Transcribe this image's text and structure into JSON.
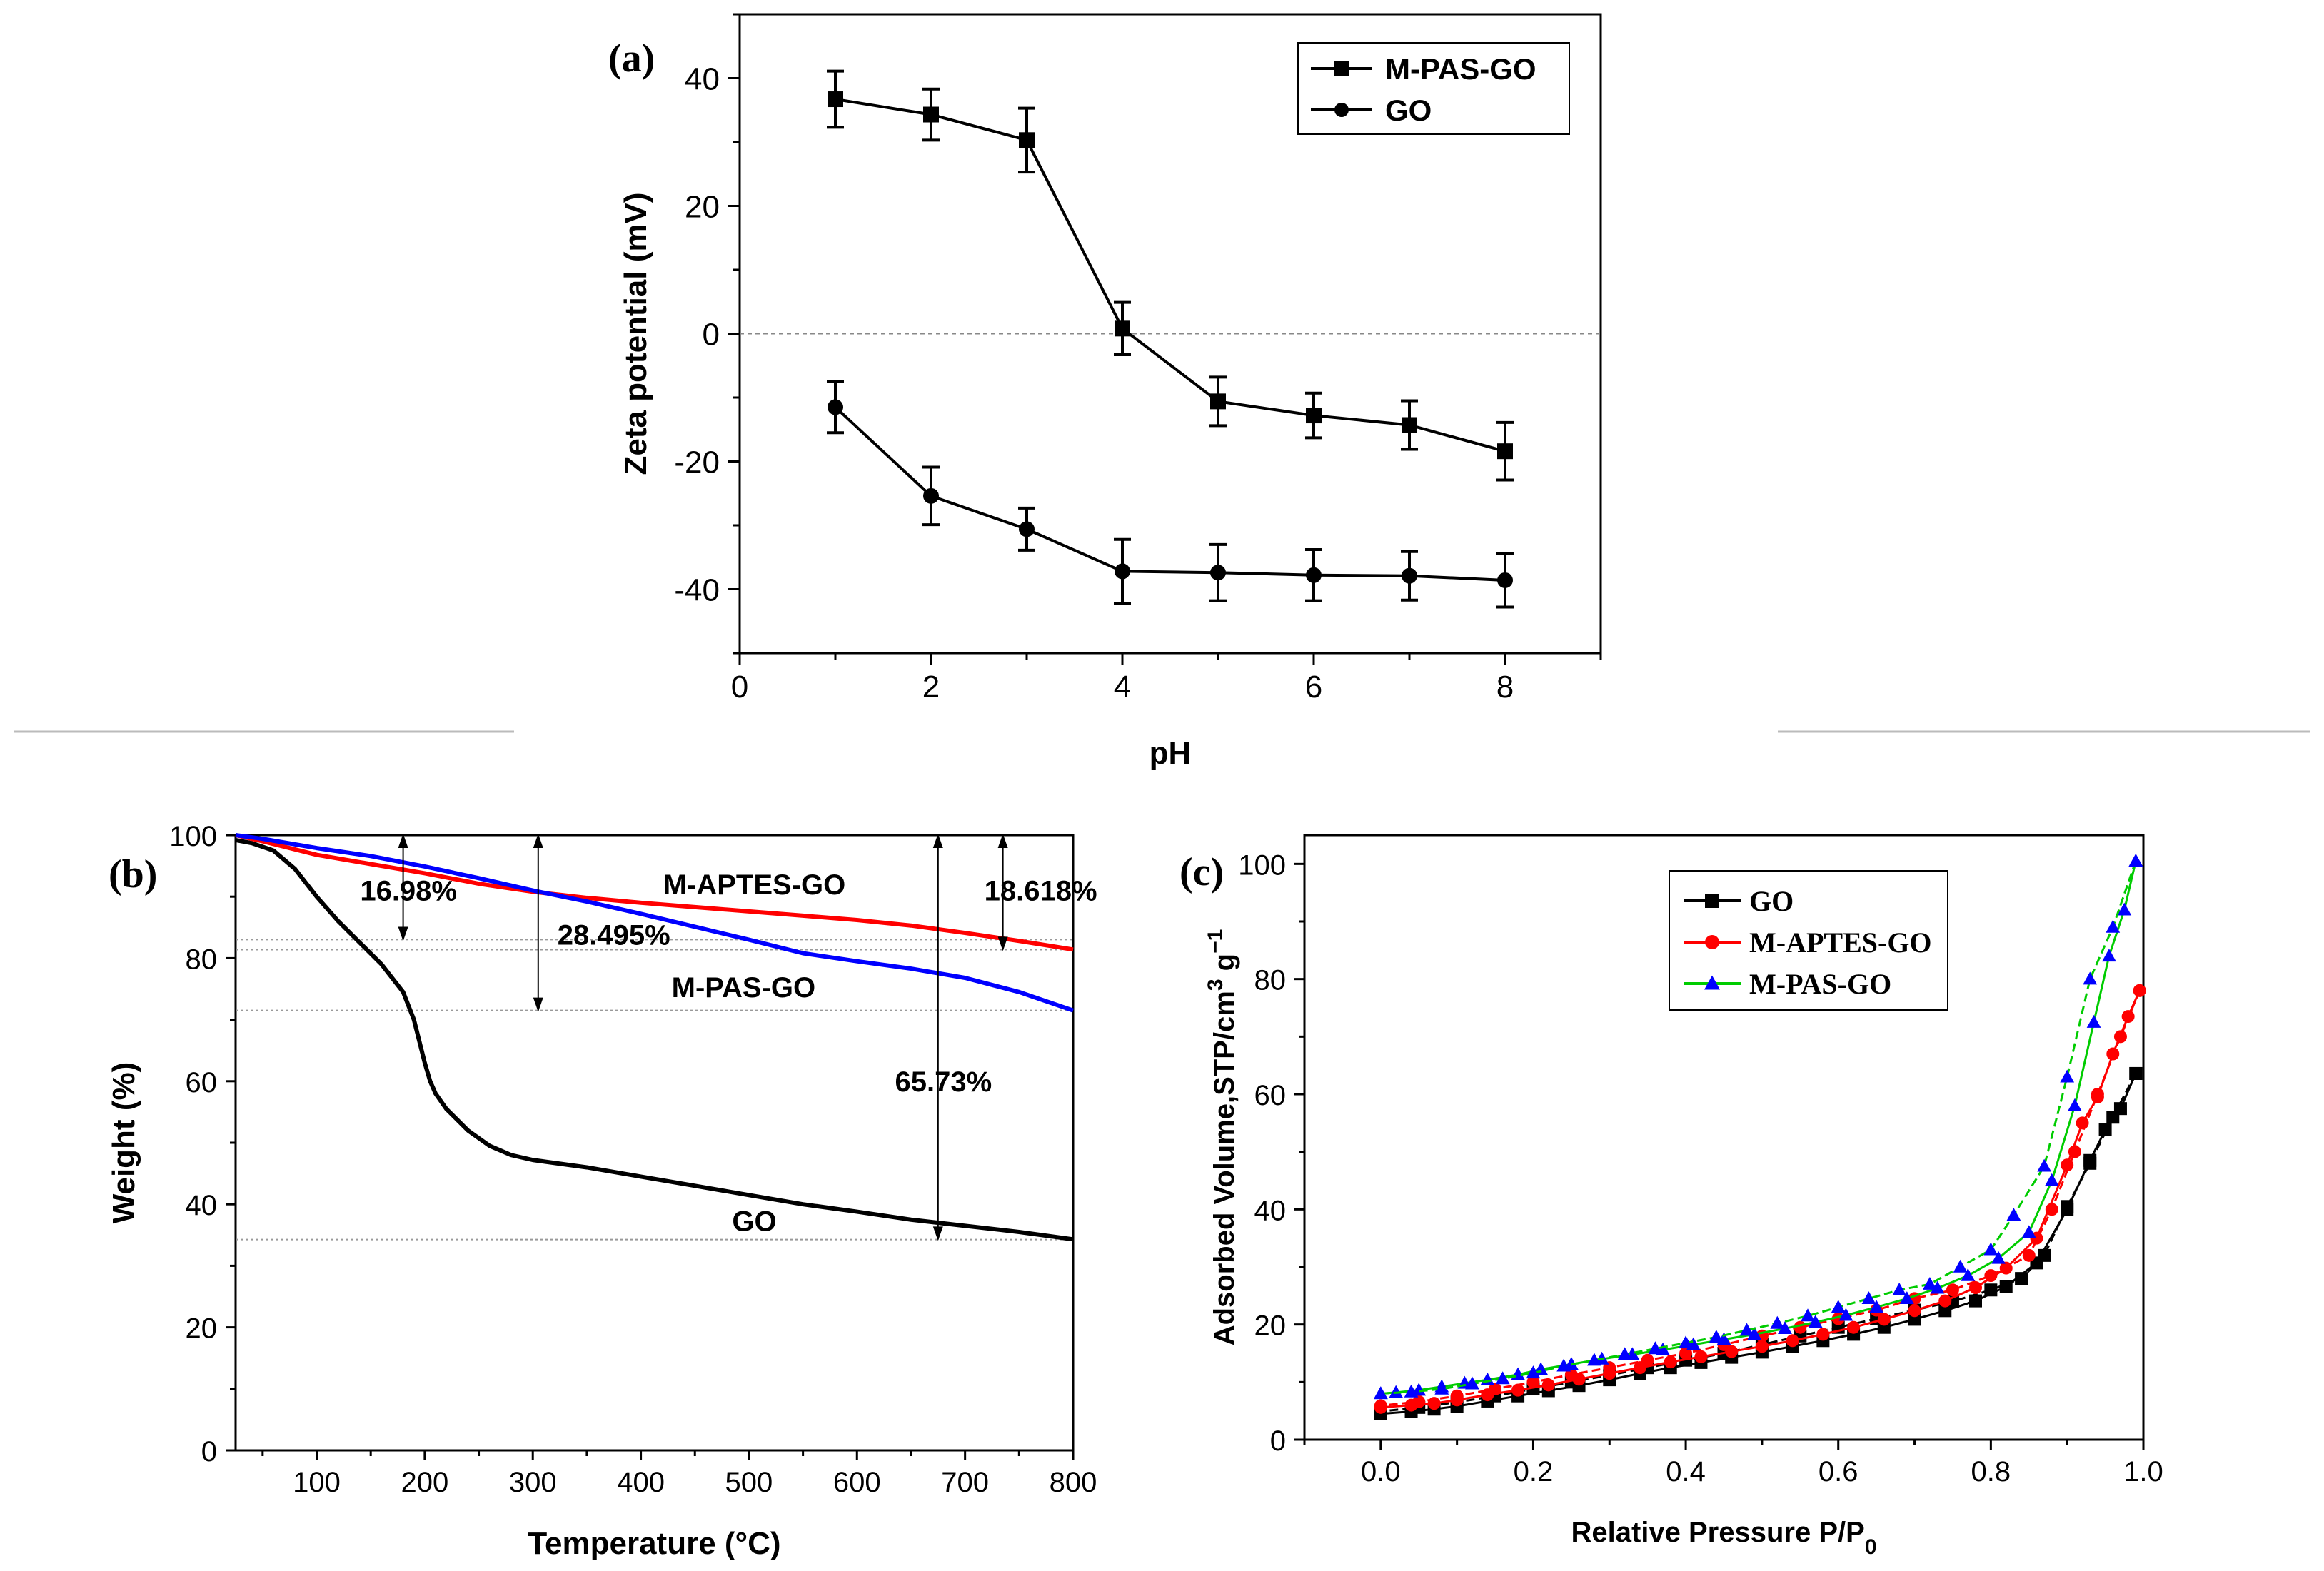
{
  "chart_data": [
    {
      "panel": "(a)",
      "type": "line",
      "title": "",
      "xlabel": "pH",
      "ylabel": "Zeta potential (mV)",
      "xlim": [
        0,
        9
      ],
      "ylim": [
        -50,
        50
      ],
      "xticks": [
        0,
        2,
        4,
        6,
        8
      ],
      "yticks": [
        -40,
        -20,
        0,
        20,
        40
      ],
      "reference_line": {
        "y": 0,
        "style": "dashed"
      },
      "legend": {
        "position": "top-right"
      },
      "series": [
        {
          "name": "M-PAS-GO",
          "marker": "square",
          "color": "#000000",
          "x": [
            1,
            2,
            3,
            4,
            5,
            6,
            7,
            8
          ],
          "y": [
            36.7,
            34.3,
            30.3,
            0.8,
            -10.6,
            -12.8,
            -14.3,
            -18.4
          ],
          "err": [
            4.4,
            4.0,
            5.0,
            4.1,
            3.8,
            3.5,
            3.8,
            4.5
          ]
        },
        {
          "name": "GO",
          "marker": "circle",
          "color": "#000000",
          "x": [
            1,
            2,
            3,
            4,
            5,
            6,
            7,
            8
          ],
          "y": [
            -11.5,
            -25.4,
            -30.6,
            -37.2,
            -37.4,
            -37.8,
            -37.9,
            -38.6
          ],
          "err": [
            4.0,
            4.5,
            3.3,
            5.0,
            4.4,
            4.0,
            3.8,
            4.2
          ]
        }
      ]
    },
    {
      "panel": "(b)",
      "type": "line",
      "title": "",
      "xlabel": "Temperature (°C)",
      "ylabel": "Weight (%)",
      "xlim": [
        25,
        800
      ],
      "ylim": [
        0,
        100
      ],
      "xticks": [
        100,
        200,
        300,
        400,
        500,
        600,
        700,
        800
      ],
      "yticks": [
        0,
        20,
        40,
        60,
        80,
        100
      ],
      "reference_lines": [
        {
          "y": 83.02,
          "style": "dotted"
        },
        {
          "y": 81.38,
          "style": "dotted"
        },
        {
          "y": 71.5,
          "style": "dotted"
        },
        {
          "y": 34.27,
          "style": "dotted"
        }
      ],
      "series": [
        {
          "name": "GO",
          "color": "#000000",
          "x": [
            25,
            40,
            60,
            80,
            100,
            120,
            140,
            160,
            180,
            190,
            200,
            205,
            210,
            220,
            240,
            260,
            280,
            300,
            350,
            400,
            450,
            500,
            550,
            600,
            650,
            700,
            750,
            800
          ],
          "y": [
            99.2,
            98.7,
            97.5,
            94.5,
            90.0,
            86.0,
            82.5,
            79.0,
            74.5,
            70.0,
            63.0,
            60.0,
            58.0,
            55.5,
            52.0,
            49.5,
            48.0,
            47.2,
            46.0,
            44.5,
            43.0,
            41.5,
            40.0,
            38.8,
            37.5,
            36.5,
            35.5,
            34.3
          ]
        },
        {
          "name": "M-APTES-GO",
          "color": "#ff0000",
          "x": [
            25,
            50,
            100,
            150,
            200,
            250,
            300,
            350,
            400,
            450,
            500,
            550,
            600,
            650,
            700,
            750,
            800
          ],
          "y": [
            100,
            99.0,
            96.8,
            95.3,
            93.8,
            92.1,
            90.8,
            89.8,
            89.0,
            88.3,
            87.6,
            86.9,
            86.2,
            85.3,
            84.1,
            82.8,
            81.4
          ]
        },
        {
          "name": "M-PAS-GO",
          "color": "#0000ff",
          "x": [
            25,
            50,
            100,
            150,
            200,
            250,
            300,
            350,
            400,
            450,
            500,
            550,
            600,
            650,
            700,
            750,
            800
          ],
          "y": [
            100,
            99.4,
            97.9,
            96.6,
            94.9,
            93.0,
            91.0,
            89.2,
            87.2,
            85.1,
            83.0,
            80.8,
            79.5,
            78.3,
            76.8,
            74.5,
            71.5
          ]
        }
      ],
      "annotations": [
        {
          "text": "16.98%",
          "x": 185,
          "y": 91.0
        },
        {
          "text": "28.495%",
          "x": 375,
          "y": 83.8
        },
        {
          "text": "65.73%",
          "x": 680,
          "y": 60.0
        },
        {
          "text": "18.618%",
          "x": 770,
          "y": 91.0
        },
        {
          "text": "M-APTES-GO",
          "x": 505,
          "y": 92.0
        },
        {
          "text": "M-PAS-GO",
          "x": 495,
          "y": 75.3
        },
        {
          "text": "GO",
          "x": 505,
          "y": 37.3
        }
      ]
    },
    {
      "panel": "(c)",
      "type": "line",
      "title": "",
      "xlabel": "Relative Pressure P/P",
      "xlabel_sub": "0",
      "ylabel": "Adsorbed Volume,STP/cm",
      "ylabel_sup": "3",
      "ylabel_tail": " g",
      "ylabel_tail_sup": "−1",
      "xlim": [
        -0.1,
        1.0
      ],
      "ylim": [
        0,
        105
      ],
      "xticks": [
        0.0,
        0.2,
        0.4,
        0.6,
        0.8,
        1.0
      ],
      "xtick_labels": [
        "0.0",
        "0.2",
        "0.4",
        "0.6",
        "0.8",
        "1.0"
      ],
      "yticks": [
        0,
        20,
        40,
        60,
        80,
        100
      ],
      "legend": {
        "position": "top-left"
      },
      "series": [
        {
          "name": "GO",
          "marker": "square",
          "color": "#000000",
          "adsorption": {
            "x": [
              0.0,
              0.04,
              0.07,
              0.1,
              0.14,
              0.18,
              0.22,
              0.26,
              0.3,
              0.34,
              0.38,
              0.42,
              0.46,
              0.5,
              0.54,
              0.58,
              0.62,
              0.66,
              0.7,
              0.74,
              0.78,
              0.82,
              0.86,
              0.9,
              0.93,
              0.95,
              0.97,
              0.99
            ],
            "y": [
              4.5,
              4.9,
              5.3,
              5.8,
              6.7,
              7.6,
              8.5,
              9.4,
              10.4,
              11.5,
              12.5,
              13.4,
              14.3,
              15.2,
              16.2,
              17.2,
              18.3,
              19.5,
              20.9,
              22.4,
              24.1,
              26.6,
              30.7,
              40.0,
              48.5,
              53.8,
              57.5,
              63.6
            ]
          },
          "desorption": {
            "x": [
              0.99,
              0.96,
              0.93,
              0.9,
              0.87,
              0.84,
              0.8,
              0.75,
              0.7,
              0.65,
              0.6,
              0.55,
              0.5,
              0.45,
              0.4,
              0.35,
              0.3,
              0.25,
              0.2,
              0.15,
              0.1,
              0.05,
              0.0
            ],
            "y": [
              63.6,
              56.0,
              48.0,
              40.5,
              32.0,
              28.0,
              26.0,
              24.0,
              22.5,
              21.0,
              19.5,
              18.0,
              16.5,
              15.0,
              13.8,
              12.5,
              11.2,
              10.0,
              8.8,
              7.6,
              6.5,
              5.6,
              4.9
            ]
          }
        },
        {
          "name": "M-APTES-GO",
          "marker": "circle",
          "color": "#ff0000",
          "adsorption": {
            "x": [
              0.0,
              0.04,
              0.07,
              0.1,
              0.14,
              0.18,
              0.22,
              0.26,
              0.3,
              0.34,
              0.38,
              0.42,
              0.46,
              0.5,
              0.54,
              0.58,
              0.62,
              0.66,
              0.7,
              0.74,
              0.78,
              0.82,
              0.86,
              0.9,
              0.92,
              0.94,
              0.96,
              0.98,
              0.995
            ],
            "y": [
              5.6,
              6.0,
              6.3,
              6.9,
              7.8,
              8.6,
              9.5,
              10.5,
              11.5,
              12.5,
              13.5,
              14.4,
              15.3,
              16.2,
              17.2,
              18.3,
              19.5,
              20.9,
              22.4,
              24.1,
              26.4,
              29.8,
              35.0,
              47.7,
              55.0,
              59.5,
              67.0,
              73.5,
              78.0
            ]
          },
          "desorption": {
            "x": [
              0.995,
              0.97,
              0.94,
              0.91,
              0.88,
              0.85,
              0.8,
              0.75,
              0.7,
              0.65,
              0.6,
              0.55,
              0.5,
              0.45,
              0.4,
              0.35,
              0.3,
              0.25,
              0.2,
              0.15,
              0.1,
              0.05,
              0.0
            ],
            "y": [
              78.0,
              70.0,
              60.0,
              50.0,
              40.0,
              32.0,
              28.5,
              26.0,
              24.5,
              22.5,
              21.0,
              19.5,
              18.0,
              16.5,
              15.0,
              13.8,
              12.5,
              11.3,
              10.0,
              8.8,
              7.6,
              6.6,
              5.9
            ]
          }
        },
        {
          "name": "M-PAS-GO",
          "marker": "triangle",
          "color": "#0000ff",
          "line_color": "#00cc00",
          "adsorption": {
            "x": [
              0.0,
              0.02,
              0.05,
              0.08,
              0.11,
              0.14,
              0.18,
              0.21,
              0.25,
              0.29,
              0.33,
              0.37,
              0.41,
              0.45,
              0.49,
              0.53,
              0.57,
              0.61,
              0.65,
              0.69,
              0.73,
              0.77,
              0.81,
              0.85,
              0.88,
              0.91,
              0.935,
              0.955,
              0.975,
              0.99
            ],
            "y": [
              8.0,
              8.2,
              8.6,
              9.2,
              9.8,
              10.4,
              11.3,
              12.2,
              13.1,
              14.0,
              14.8,
              15.6,
              16.5,
              17.4,
              18.3,
              19.3,
              20.4,
              21.6,
              23.0,
              24.5,
              26.3,
              28.5,
              31.5,
              36.0,
              45.0,
              58.0,
              72.5,
              84.0,
              92.0,
              100.5
            ]
          },
          "desorption": {
            "x": [
              0.99,
              0.96,
              0.93,
              0.9,
              0.87,
              0.83,
              0.8,
              0.76,
              0.72,
              0.68,
              0.64,
              0.6,
              0.56,
              0.52,
              0.48,
              0.44,
              0.4,
              0.36,
              0.32,
              0.28,
              0.24,
              0.2,
              0.16,
              0.12,
              0.08,
              0.04,
              0.0
            ],
            "y": [
              100.5,
              89.0,
              80.0,
              63.0,
              47.5,
              39.0,
              33.0,
              30.0,
              27.0,
              26.0,
              24.5,
              23.0,
              21.5,
              20.2,
              19.0,
              17.8,
              16.8,
              15.8,
              14.8,
              13.8,
              12.8,
              11.6,
              10.6,
              9.7,
              8.8,
              8.3,
              8.0
            ]
          }
        }
      ]
    }
  ]
}
